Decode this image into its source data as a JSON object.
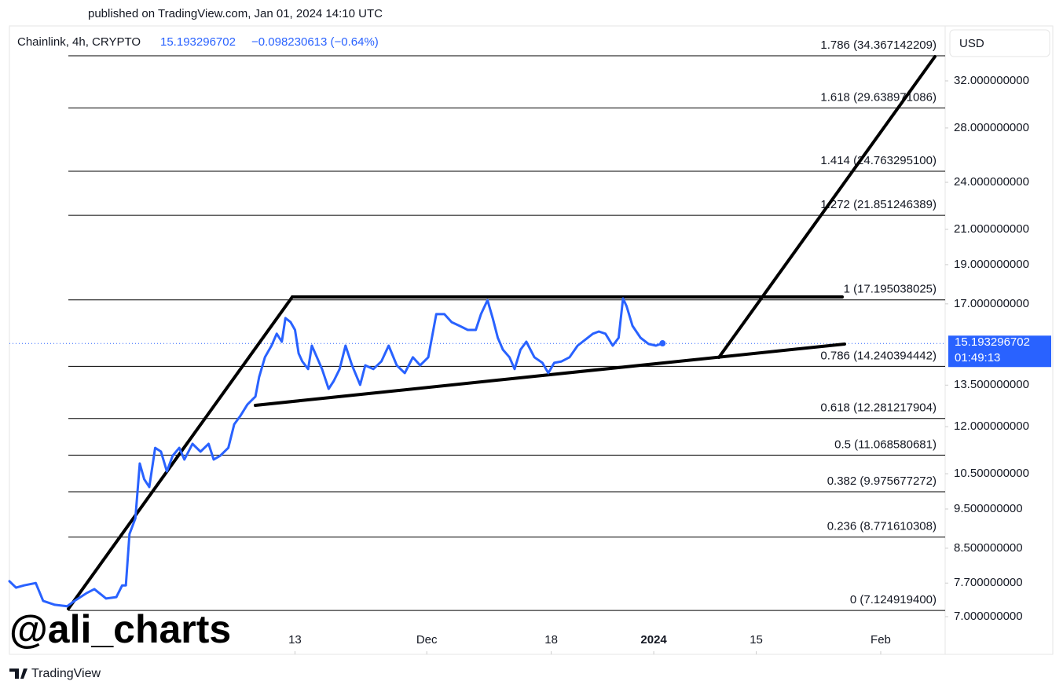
{
  "header": {
    "published": "published on TradingView.com, Jan 01, 2024 14:10 UTC",
    "symbol": "Chainlink, 4h, CRYPTO",
    "change": "−0.098230613 (−0.64%)"
  },
  "chart_data": {
    "type": "line",
    "color": "#2962ff",
    "log_scale": true,
    "grid": false,
    "currency": "USD",
    "last_price": 15.193296702,
    "countdown": "01:49:13",
    "xlim": [
      4.0,
      131.8
    ],
    "ylim": [
      6.29,
      37.4
    ],
    "xticks": [
      {
        "value": 43,
        "label": "13"
      },
      {
        "value": 61,
        "label": "Dec"
      },
      {
        "value": 78,
        "label": "18"
      },
      {
        "value": 92,
        "label": "2024"
      },
      {
        "value": 106,
        "label": "15"
      },
      {
        "value": 123,
        "label": "Feb"
      }
    ],
    "yticks": [
      {
        "value": 32,
        "label": "32.000000000"
      },
      {
        "value": 28,
        "label": "28.000000000"
      },
      {
        "value": 24,
        "label": "24.000000000"
      },
      {
        "value": 21,
        "label": "21.000000000"
      },
      {
        "value": 19,
        "label": "19.000000000"
      },
      {
        "value": 17,
        "label": "17.000000000"
      },
      {
        "value": 13.5,
        "label": "13.500000000"
      },
      {
        "value": 12,
        "label": "12.000000000"
      },
      {
        "value": 10.5,
        "label": "10.500000000"
      },
      {
        "value": 9.5,
        "label": "9.500000000"
      },
      {
        "value": 8.5,
        "label": "8.500000000"
      },
      {
        "value": 7.7,
        "label": "7.700000000"
      },
      {
        "value": 7,
        "label": "7.000000000"
      }
    ],
    "fib_levels": [
      {
        "value": 34.367142209,
        "label": "1.786 (34.367142209)"
      },
      {
        "value": 29.638971086,
        "label": "1.618 (29.638971086)"
      },
      {
        "value": 24.7632951,
        "label": "1.414 (24.763295100)"
      },
      {
        "value": 21.851246389,
        "label": "1.272 (21.851246389)"
      },
      {
        "value": 17.195038025,
        "label": "1 (17.195038025)"
      },
      {
        "value": 14.240394442,
        "label": "0.786 (14.240394442)"
      },
      {
        "value": 12.281217904,
        "label": "0.618 (12.281217904)"
      },
      {
        "value": 11.068580681,
        "label": "0.5 (11.068580681)"
      },
      {
        "value": 9.975677272,
        "label": "0.382 (9.975677272)"
      },
      {
        "value": 8.771610308,
        "label": "0.236 (8.771610308)"
      },
      {
        "value": 7.1249194,
        "label": "0 (7.124919400)"
      }
    ],
    "x": [
      4.0,
      4.9,
      6.0,
      7.6,
      8.6,
      10.2,
      11.9,
      12.9,
      14.5,
      15.6,
      17.2,
      18.6,
      19.4,
      19.9,
      20.4,
      21.2,
      21.8,
      22.4,
      23.1,
      23.9,
      24.7,
      25.5,
      26.3,
      27.2,
      27.9,
      29.0,
      30.1,
      31.2,
      31.9,
      32.8,
      33.9,
      34.7,
      35.5,
      36.5,
      37.6,
      38.1,
      38.9,
      39.8,
      40.5,
      41.2,
      41.7,
      42.4,
      43.0,
      43.5,
      44.0,
      44.8,
      45.3,
      46.0,
      46.7,
      47.6,
      48.3,
      49.1,
      49.9,
      50.8,
      51.9,
      52.6,
      53.7,
      54.8,
      55.8,
      56.9,
      58.0,
      59.1,
      60.1,
      61.2,
      62.3,
      63.4,
      64.4,
      65.5,
      66.6,
      67.7,
      68.4,
      69.3,
      70.0,
      70.7,
      71.4,
      72.3,
      73.0,
      73.8,
      74.6,
      75.7,
      76.8,
      77.6,
      78.4,
      79.4,
      80.5,
      81.6,
      82.7,
      83.7,
      84.5,
      85.4,
      86.4,
      87.2,
      87.8,
      88.3,
      89.1,
      90.2,
      91.3,
      92.3,
      93.2
    ],
    "values": [
      7.74,
      7.6,
      7.65,
      7.7,
      7.32,
      7.24,
      7.21,
      7.32,
      7.48,
      7.57,
      7.37,
      7.4,
      7.65,
      7.65,
      8.85,
      9.25,
      10.81,
      10.34,
      10.11,
      11.3,
      11.18,
      10.57,
      11.05,
      11.3,
      10.93,
      11.43,
      11.18,
      11.43,
      10.93,
      11.05,
      11.3,
      12.08,
      12.36,
      12.78,
      13.07,
      13.81,
      14.61,
      15.1,
      15.62,
      15.27,
      16.33,
      16.14,
      15.79,
      14.77,
      14.44,
      14.13,
      15.1,
      14.61,
      14.13,
      13.36,
      13.66,
      14.13,
      15.1,
      14.28,
      13.51,
      14.28,
      14.13,
      14.44,
      15.1,
      14.28,
      13.97,
      14.61,
      14.28,
      14.61,
      16.51,
      16.51,
      16.14,
      15.97,
      15.79,
      15.79,
      16.51,
      17.18,
      16.33,
      15.44,
      14.93,
      14.61,
      14.13,
      14.93,
      15.27,
      14.61,
      14.38,
      13.97,
      14.38,
      14.44,
      14.61,
      15.1,
      15.37,
      15.62,
      15.72,
      15.62,
      15.1,
      15.44,
      17.26,
      16.88,
      15.97,
      15.44,
      15.17,
      15.1,
      15.2
    ]
  },
  "watermark": "@ali_charts",
  "brand": "TradingView"
}
